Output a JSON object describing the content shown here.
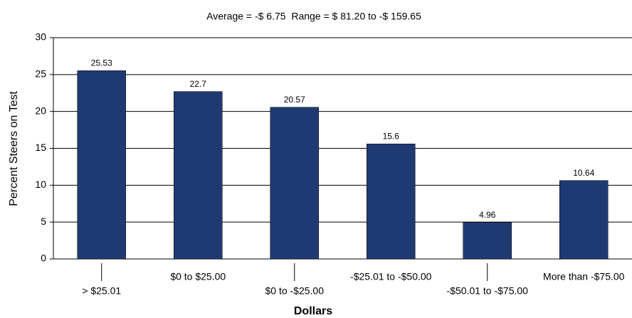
{
  "chart_data": {
    "type": "bar",
    "title": "Average = -$ 6.75  Range = $ 81.20 to -$ 159.65",
    "x_label": "Dollars",
    "y_label": "Percent Steers on Test",
    "categories": [
      "> $25.01",
      "$0 to $25.00",
      "$0 to -$25.00",
      "-$25.01 to -$50.00",
      "-$50.01 to -$75.00",
      "More than -$75.00"
    ],
    "values": [
      25.53,
      22.7,
      20.57,
      15.6,
      4.96,
      10.64
    ],
    "color": "#1f3a73",
    "ylim": [
      0,
      30
    ],
    "yticks": [
      0,
      5,
      10,
      15,
      20,
      25,
      30
    ],
    "grid": true
  }
}
